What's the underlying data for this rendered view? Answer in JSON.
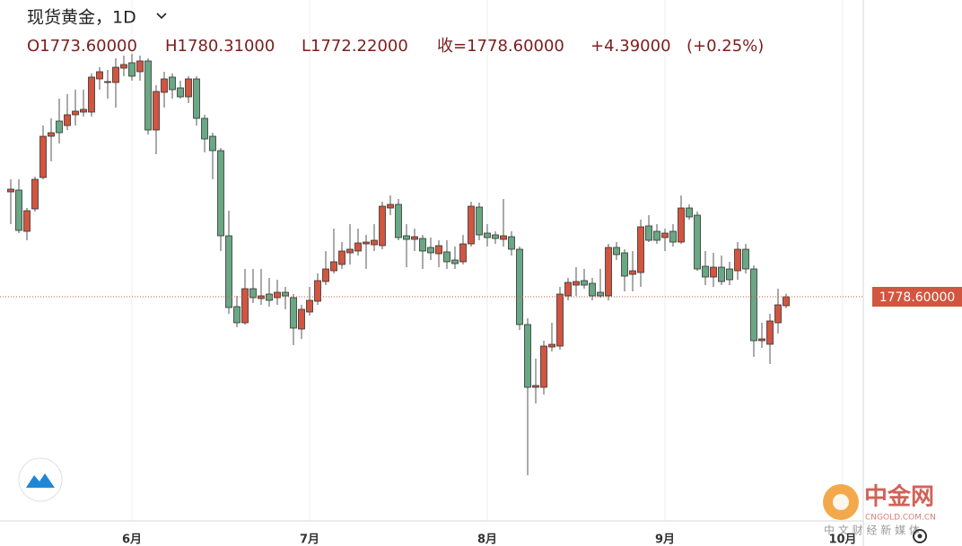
{
  "chart_data": {
    "type": "candlestick",
    "title": "现货黄金，1D",
    "header": {
      "open": "O1773.60000",
      "high": "H1780.31000",
      "low": "L1772.22000",
      "close": "收=1778.60000",
      "change": "+4.39000",
      "change_pct": "(+0.25%)"
    },
    "up_color": "#d2553f",
    "down_color": "#6aa784",
    "ylim": [
      1654.1,
      1944.1
    ],
    "xticks": [
      {
        "value": 15,
        "label": "6月"
      },
      {
        "value": 37,
        "label": "7月"
      },
      {
        "value": 59,
        "label": "8月"
      },
      {
        "value": 81,
        "label": "9月"
      },
      {
        "value": 103,
        "label": "10月"
      }
    ],
    "grid": true,
    "last_price": {
      "value": 1778.6,
      "label": "1778.60000"
    },
    "watermark": {
      "name": "中金网",
      "domain": "CNGOLD.COM.CN",
      "slogan": "中 文 财 经 新 媒 体"
    },
    "open": [
      1837.1,
      1838.1,
      1815.1,
      1827.6,
      1845.1,
      1868.1,
      1876.6,
      1874.1,
      1880.1,
      1881.6,
      1881.6,
      1900.1,
      1898.1,
      1898.1,
      1906.1,
      1909.1,
      1904.1,
      1910.1,
      1871.6,
      1892.6,
      1901.1,
      1895.1,
      1890.1,
      1900.1,
      1878.1,
      1868.1,
      1860.1,
      1812.6,
      1773.1,
      1764.1,
      1783.1,
      1777.6,
      1780.1,
      1778.1,
      1781.1,
      1778.1,
      1760.6,
      1770.1,
      1776.1,
      1787.1,
      1793.1,
      1796.6,
      1803.1,
      1804.1,
      1808.1,
      1807.6,
      1807.1,
      1828.1,
      1830.1,
      1812.6,
      1810.6,
      1811.1,
      1806.1,
      1802.6,
      1803.6,
      1799.1,
      1798.1,
      1808.1,
      1828.6,
      1814.1,
      1813.1,
      1810.6,
      1812.1,
      1805.1,
      1763.1,
      1728.1,
      1728.1,
      1750.6,
      1751.1,
      1779.1,
      1785.1,
      1787.6,
      1786.1,
      1781.1,
      1779.1,
      1806.1,
      1803.1,
      1791.1,
      1792.1,
      1818.1,
      1815.1,
      1811.6,
      1815.1,
      1809.1,
      1828.1,
      1824.1,
      1795.6,
      1789.6,
      1795.1,
      1794.1,
      1793.1,
      1805.1,
      1794.1,
      1754.1,
      1752.1,
      1764.1,
      1773.6
    ],
    "high": [
      1844.1,
      1844.1,
      1828.1,
      1845.6,
      1874.1,
      1878.1,
      1889.1,
      1891.6,
      1894.1,
      1894.1,
      1903.1,
      1906.6,
      1905.1,
      1911.6,
      1913.1,
      1914.1,
      1913.1,
      1911.6,
      1896.6,
      1904.1,
      1903.1,
      1899.1,
      1901.6,
      1901.6,
      1880.1,
      1870.1,
      1861.6,
      1826.6,
      1779.1,
      1794.1,
      1794.1,
      1794.1,
      1789.1,
      1788.1,
      1784.1,
      1780.1,
      1774.1,
      1784.1,
      1791.6,
      1804.1,
      1816.6,
      1809.1,
      1819.1,
      1816.6,
      1813.1,
      1819.1,
      1831.6,
      1835.1,
      1833.1,
      1819.1,
      1816.6,
      1813.1,
      1811.6,
      1810.1,
      1810.1,
      1806.6,
      1813.1,
      1831.6,
      1831.1,
      1819.1,
      1815.1,
      1833.1,
      1815.1,
      1806.6,
      1766.6,
      1744.1,
      1754.1,
      1764.1,
      1784.1,
      1789.1,
      1795.1,
      1794.1,
      1789.1,
      1794.1,
      1808.1,
      1809.1,
      1805.1,
      1804.1,
      1821.6,
      1824.1,
      1819.1,
      1816.6,
      1819.1,
      1835.1,
      1830.1,
      1826.1,
      1804.1,
      1803.1,
      1801.6,
      1798.1,
      1809.1,
      1808.1,
      1796.1,
      1764.1,
      1769.1,
      1783.1,
      1780.31
    ],
    "low": [
      1819.1,
      1814.1,
      1810.1,
      1826.1,
      1844.1,
      1854.1,
      1864.1,
      1871.6,
      1874.1,
      1879.1,
      1879.1,
      1894.1,
      1889.1,
      1884.1,
      1901.6,
      1899.1,
      1899.1,
      1869.1,
      1858.1,
      1884.1,
      1889.1,
      1889.1,
      1886.6,
      1874.1,
      1859.1,
      1844.1,
      1804.1,
      1769.1,
      1761.6,
      1763.1,
      1775.1,
      1774.1,
      1773.1,
      1774.1,
      1771.6,
      1751.6,
      1755.1,
      1768.1,
      1774.1,
      1785.1,
      1791.6,
      1794.1,
      1796.6,
      1801.6,
      1794.1,
      1804.1,
      1805.1,
      1824.1,
      1810.1,
      1795.1,
      1804.1,
      1794.1,
      1799.1,
      1795.1,
      1794.1,
      1794.1,
      1796.6,
      1806.6,
      1810.1,
      1806.6,
      1808.1,
      1806.6,
      1801.6,
      1760.1,
      1679.1,
      1719.1,
      1724.1,
      1748.1,
      1749.1,
      1776.6,
      1779.1,
      1783.1,
      1776.6,
      1778.1,
      1776.6,
      1799.1,
      1781.6,
      1781.6,
      1784.1,
      1809.1,
      1808.1,
      1804.1,
      1806.6,
      1808.1,
      1821.6,
      1793.1,
      1785.1,
      1784.1,
      1785.1,
      1785.1,
      1788.1,
      1791.6,
      1745.1,
      1750.1,
      1741.1,
      1758.1,
      1772.22
    ],
    "close": [
      1838.6,
      1815.6,
      1826.6,
      1844.1,
      1868.1,
      1870.1,
      1870.1,
      1880.1,
      1882.1,
      1883.1,
      1901.1,
      1904.1,
      1898.6,
      1906.6,
      1908.1,
      1901.6,
      1910.1,
      1871.6,
      1893.1,
      1900.1,
      1894.1,
      1890.1,
      1900.1,
      1878.1,
      1866.6,
      1860.1,
      1812.6,
      1772.6,
      1764.1,
      1783.1,
      1778.1,
      1779.1,
      1776.6,
      1781.1,
      1779.1,
      1761.1,
      1771.6,
      1776.6,
      1787.6,
      1794.1,
      1798.1,
      1804.1,
      1805.1,
      1808.6,
      1809.1,
      1810.1,
      1829.1,
      1830.1,
      1811.6,
      1810.6,
      1812.1,
      1804.1,
      1803.1,
      1807.1,
      1798.1,
      1797.1,
      1808.1,
      1829.1,
      1813.1,
      1811.6,
      1811.1,
      1812.6,
      1805.1,
      1763.1,
      1728.1,
      1729.1,
      1751.1,
      1752.1,
      1780.1,
      1786.6,
      1787.1,
      1785.1,
      1779.1,
      1779.1,
      1806.1,
      1802.1,
      1790.1,
      1793.1,
      1817.6,
      1810.1,
      1810.1,
      1814.1,
      1809.1,
      1828.1,
      1823.1,
      1794.1,
      1789.6,
      1795.1,
      1787.1,
      1788.1,
      1805.1,
      1794.1,
      1754.1,
      1755.1,
      1765.1,
      1774.1,
      1778.6
    ]
  }
}
